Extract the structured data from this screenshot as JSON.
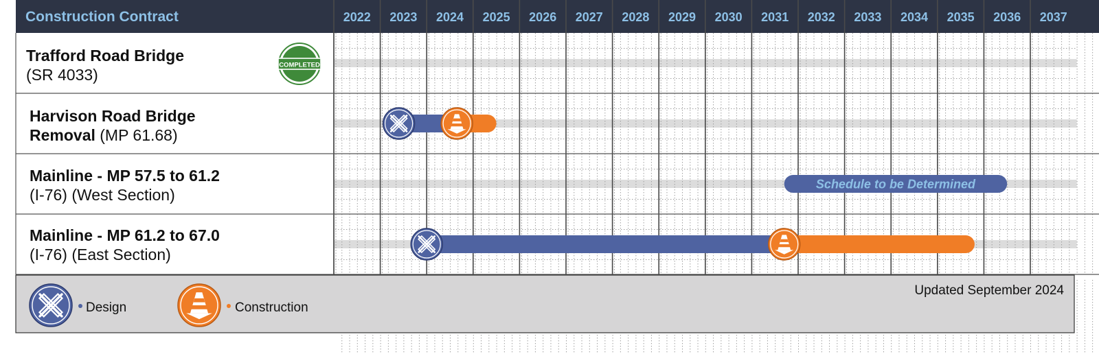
{
  "chart_data": {
    "type": "gantt",
    "header": {
      "title": "Construction Contract"
    },
    "years": [
      "2022",
      "2023",
      "2024",
      "2025",
      "2026",
      "2027",
      "2028",
      "2029",
      "2030",
      "2031",
      "2032",
      "2033",
      "2034",
      "2035",
      "2036",
      "2037"
    ],
    "projects": [
      {
        "title": "Trafford Road Bridge",
        "subtitle": "(SR 4033)",
        "status_badge": "COMPLETED",
        "phases": []
      },
      {
        "title": "Harvison Road Bridge",
        "title_line2": "Removal",
        "subtitle": " (MP 61.68)",
        "phases": [
          {
            "phase": "design",
            "start": 2023.4,
            "end": 2024.6
          },
          {
            "phase": "construction",
            "start": 2024.65,
            "end": 2025.5
          }
        ]
      },
      {
        "title": "Mainline - MP 57.5 to 61.2",
        "subtitle": "(I-76) (West Section)",
        "status_text": "Schedule to be Determined",
        "tbd_start": 2031.7,
        "tbd_end": 2036.5,
        "phases": []
      },
      {
        "title": "Mainline - MP 61.2 to 67.0",
        "subtitle": "(I-76) (East Section)",
        "phases": [
          {
            "phase": "design",
            "start": 2024.0,
            "end": 2031.7
          },
          {
            "phase": "construction",
            "start": 2031.7,
            "end": 2035.8
          }
        ]
      }
    ],
    "legend": {
      "position": "bottom-left",
      "items": [
        {
          "key": "design",
          "label": "Design",
          "icon": "pencil-ruler-icon",
          "color": "#4f63a1"
        },
        {
          "key": "construction",
          "label": "Construction",
          "icon": "traffic-cone-icon",
          "color": "#f07d26"
        }
      ]
    },
    "footer_note": "Updated September 2024",
    "colors": {
      "header_bg": "#2d3445",
      "header_text": "#8dc0e6",
      "design": "#4f63a1",
      "construction": "#f07d26",
      "completed": "#3f8a3a",
      "track": "#dcdcdc",
      "legend_bg": "#d6d5d6",
      "tbd_text": "#8dc0e6"
    }
  }
}
